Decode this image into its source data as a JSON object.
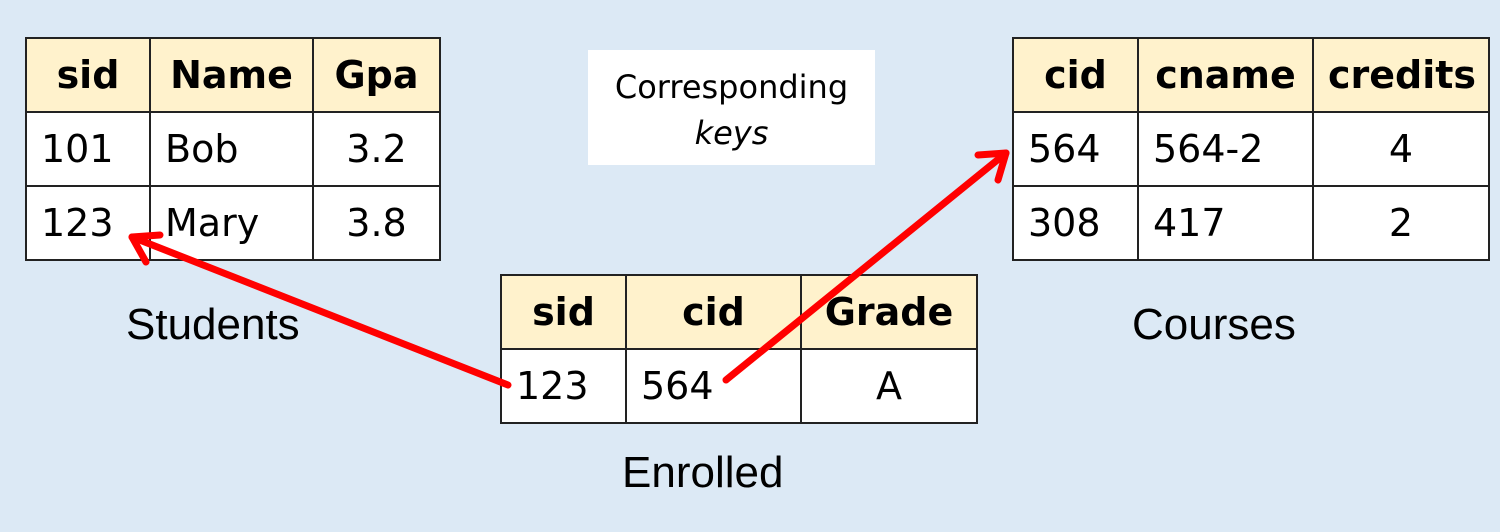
{
  "students": {
    "caption": "Students",
    "headers": [
      "sid",
      "Name",
      "Gpa"
    ],
    "rows": [
      [
        "101",
        "Bob",
        "3.2"
      ],
      [
        "123",
        "Mary",
        "3.8"
      ]
    ]
  },
  "courses": {
    "caption": "Courses",
    "headers": [
      "cid",
      "cname",
      "credits"
    ],
    "rows": [
      [
        "564",
        "564-2",
        "4"
      ],
      [
        "308",
        "417",
        "2"
      ]
    ]
  },
  "enrolled": {
    "caption": "Enrolled",
    "headers": [
      "sid",
      "cid",
      "Grade"
    ],
    "rows": [
      [
        "123",
        "564",
        "A"
      ]
    ]
  },
  "note": {
    "line1": "Corresponding",
    "line2": "keys"
  },
  "colors": {
    "background": "#dce9f5",
    "header_fill": "#fff2cc",
    "arrow": "#ff0000"
  }
}
